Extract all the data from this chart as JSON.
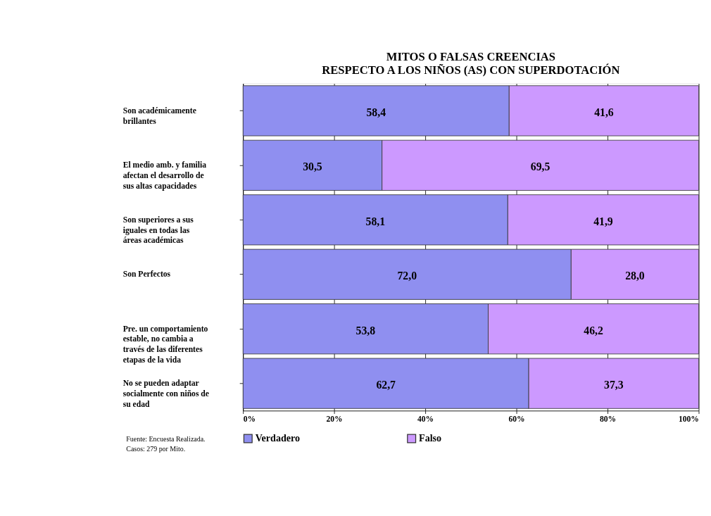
{
  "chart_data": {
    "type": "bar",
    "orientation": "horizontal",
    "stacked": true,
    "title": "MITOS O FALSAS CREENCIAS",
    "subtitle": "RESPECTO A LOS NIÑOS (AS) CON  SUPERDOTACIÓN",
    "categories": [
      "Son académicamente brillantes",
      "El medio amb. y familia afectan el desarrollo de sus altas capacidades",
      "Son superiores a sus iguales en todas las áreas académicas",
      "Son Perfectos",
      "Pre. un comportamiento estable, no cambia a través de las diferentes etapas de la vida",
      "No se pueden adaptar socialmente con niños de su edad"
    ],
    "series": [
      {
        "name": "Verdadero",
        "color": "#8f8ff0",
        "values": [
          58.4,
          30.5,
          58.1,
          72.0,
          53.8,
          62.7
        ],
        "value_labels": [
          "58,4",
          "30,5",
          "58,1",
          "72,0",
          "53,8",
          "62,7"
        ]
      },
      {
        "name": "Falso",
        "color": "#cc99ff",
        "values": [
          41.6,
          69.5,
          41.9,
          28.0,
          46.2,
          37.3
        ],
        "value_labels": [
          "41,6",
          "69,5",
          "41,9",
          "28,0",
          "46,2",
          "37,3"
        ]
      }
    ],
    "xlim": [
      0,
      100
    ],
    "xticks": [
      {
        "value": 0,
        "label": "0%"
      },
      {
        "value": 20,
        "label": "20%"
      },
      {
        "value": 40,
        "label": "40%"
      },
      {
        "value": 60,
        "label": "60%"
      },
      {
        "value": 80,
        "label": "80%"
      },
      {
        "value": 100,
        "label": "100%"
      }
    ],
    "grid": "x",
    "legend": "bottom",
    "annotations": [
      "Fuente: Encuesta Realizada.",
      "Casos: 279 por Mito."
    ]
  }
}
